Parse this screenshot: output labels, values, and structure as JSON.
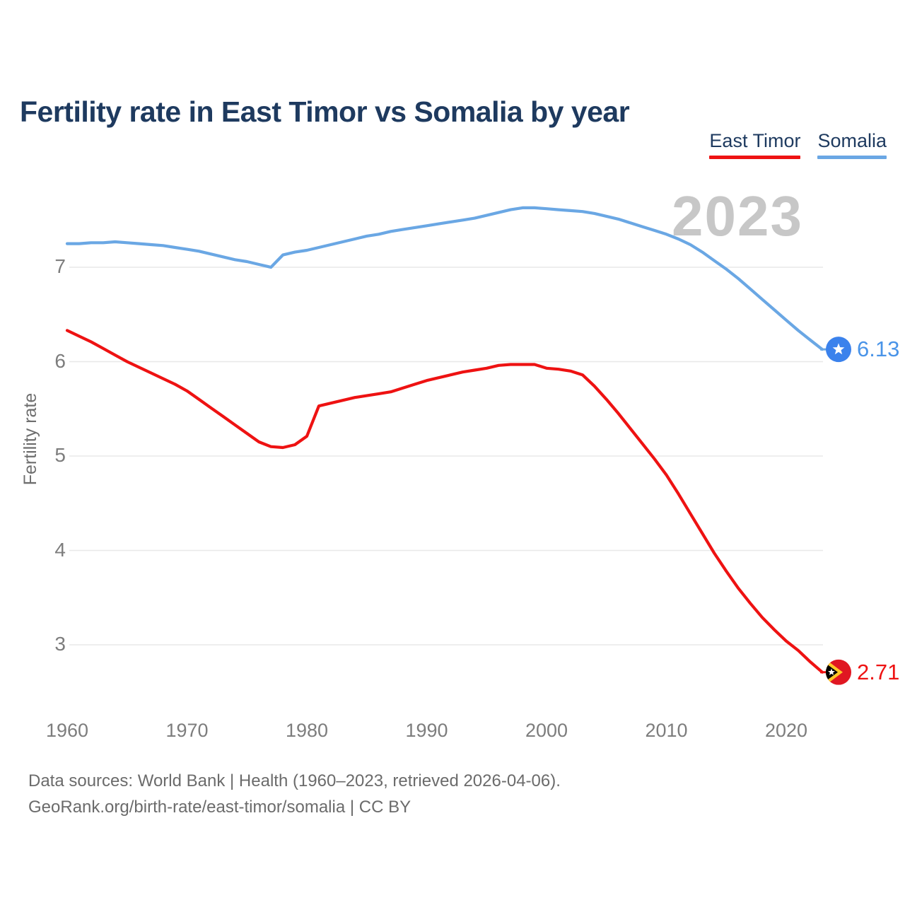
{
  "title": "Fertility rate in East Timor vs Somalia by year",
  "watermark": "2023",
  "legend": [
    {
      "label": "East Timor",
      "color": "#ee1212"
    },
    {
      "label": "Somalia",
      "color": "#6aa7e4"
    }
  ],
  "end_labels": {
    "east_timor": "2.71",
    "somalia": "6.13"
  },
  "footer": {
    "line1": "Data sources: World Bank | Health (1960–2023, retrieved 2026-04-06).",
    "line2": "GeoRank.org/birth-rate/east-timor/somalia | CC BY"
  },
  "colors": {
    "title_text": "#1e3a5f",
    "axis_text": "#7d7d7d",
    "gridline": "#e8e8e8",
    "watermark": "#c7c7c7",
    "footer_text": "#6b6b6b",
    "background": "#ffffff"
  },
  "chart_data": {
    "type": "line",
    "title": "Fertility rate in East Timor vs Somalia by year",
    "xlabel": "",
    "ylabel": "Fertility rate",
    "grid": true,
    "legend_position": "top-right",
    "xlim": [
      1960,
      2023
    ],
    "ylim": [
      2.4,
      7.9
    ],
    "xticks": [
      1960,
      1970,
      1980,
      1990,
      2000,
      2010,
      2020
    ],
    "yticks": [
      3,
      4,
      5,
      6,
      7
    ],
    "x": [
      1960,
      1961,
      1962,
      1963,
      1964,
      1965,
      1966,
      1967,
      1968,
      1969,
      1970,
      1971,
      1972,
      1973,
      1974,
      1975,
      1976,
      1977,
      1978,
      1979,
      1980,
      1981,
      1982,
      1983,
      1984,
      1985,
      1986,
      1987,
      1988,
      1989,
      1990,
      1991,
      1992,
      1993,
      1994,
      1995,
      1996,
      1997,
      1998,
      1999,
      2000,
      2001,
      2002,
      2003,
      2004,
      2005,
      2006,
      2007,
      2008,
      2009,
      2010,
      2011,
      2012,
      2013,
      2014,
      2015,
      2016,
      2017,
      2018,
      2019,
      2020,
      2021,
      2022,
      2023
    ],
    "series": [
      {
        "name": "East Timor",
        "color": "#ee1212",
        "label_color": "#ee1212",
        "end_value": 2.71,
        "marker": {
          "circle": "#e01722",
          "chevron_yellow": "#ffc726",
          "chevron_black": "#000000",
          "star": "#ffffff"
        },
        "values": [
          6.33,
          6.27,
          6.21,
          6.14,
          6.07,
          6.0,
          5.94,
          5.88,
          5.82,
          5.76,
          5.69,
          5.6,
          5.51,
          5.42,
          5.33,
          5.24,
          5.15,
          5.1,
          5.09,
          5.12,
          5.21,
          5.53,
          5.56,
          5.59,
          5.62,
          5.64,
          5.66,
          5.68,
          5.72,
          5.76,
          5.8,
          5.83,
          5.86,
          5.89,
          5.91,
          5.93,
          5.96,
          5.97,
          5.97,
          5.97,
          5.93,
          5.92,
          5.9,
          5.86,
          5.74,
          5.6,
          5.45,
          5.29,
          5.13,
          4.97,
          4.8,
          4.6,
          4.39,
          4.18,
          3.97,
          3.78,
          3.6,
          3.44,
          3.29,
          3.16,
          3.04,
          2.94,
          2.82,
          2.71
        ]
      },
      {
        "name": "Somalia",
        "color": "#6aa7e4",
        "label_color": "#4a94e8",
        "end_value": 6.13,
        "marker": {
          "circle": "#3b82ec",
          "star": "#ffffff"
        },
        "values": [
          7.25,
          7.25,
          7.26,
          7.26,
          7.27,
          7.26,
          7.25,
          7.24,
          7.23,
          7.21,
          7.19,
          7.17,
          7.14,
          7.11,
          7.08,
          7.06,
          7.03,
          7.0,
          7.13,
          7.16,
          7.18,
          7.21,
          7.24,
          7.27,
          7.3,
          7.33,
          7.35,
          7.38,
          7.4,
          7.42,
          7.44,
          7.46,
          7.48,
          7.5,
          7.52,
          7.55,
          7.58,
          7.61,
          7.63,
          7.63,
          7.62,
          7.61,
          7.6,
          7.59,
          7.57,
          7.54,
          7.51,
          7.47,
          7.43,
          7.39,
          7.35,
          7.3,
          7.24,
          7.16,
          7.07,
          6.98,
          6.88,
          6.77,
          6.66,
          6.55,
          6.44,
          6.33,
          6.23,
          6.13
        ]
      }
    ]
  }
}
